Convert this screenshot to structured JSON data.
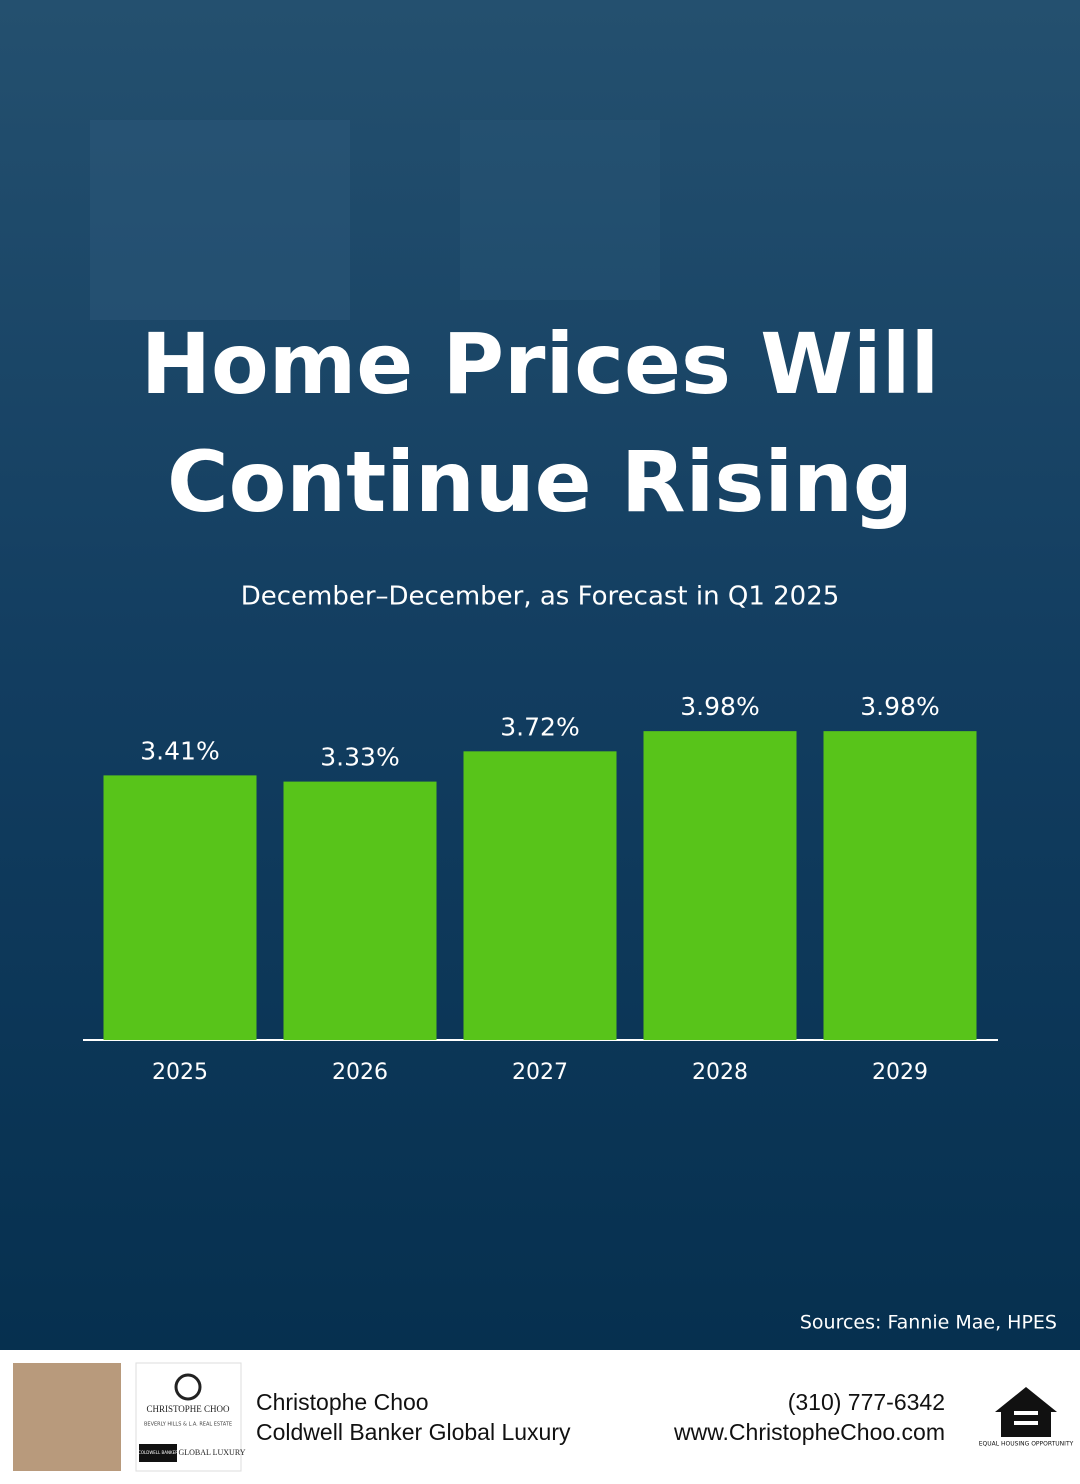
{
  "chart_data": {
    "type": "bar",
    "title": "Home Prices Will Continue Rising",
    "subtitle": "December–December, as Forecast in Q1 2025",
    "categories": [
      "2025",
      "2026",
      "2027",
      "2028",
      "2029"
    ],
    "values": [
      3.41,
      3.33,
      3.72,
      3.98,
      3.98
    ],
    "value_labels": [
      "3.41%",
      "3.33%",
      "3.72%",
      "3.98%",
      "3.98%"
    ],
    "color": "#58c41a",
    "ylim": [
      0,
      5
    ],
    "source": "Sources: Fannie Mae, HPES"
  },
  "footer": {
    "name": "Christophe Choo",
    "company": "Coldwell Banker Global Luxury",
    "phone": "(310) 777-6342",
    "website": "www.ChristopheChoo.com",
    "logo_name": "CHRISTOPHE CHOO",
    "logo_sub": "BEVERLY HILLS & L.A. REAL ESTATE",
    "logo_brand": "COLDWELL BANKER",
    "logo_luxury": "GLOBAL LUXURY",
    "housing": "EQUAL HOUSING OPPORTUNITY"
  }
}
